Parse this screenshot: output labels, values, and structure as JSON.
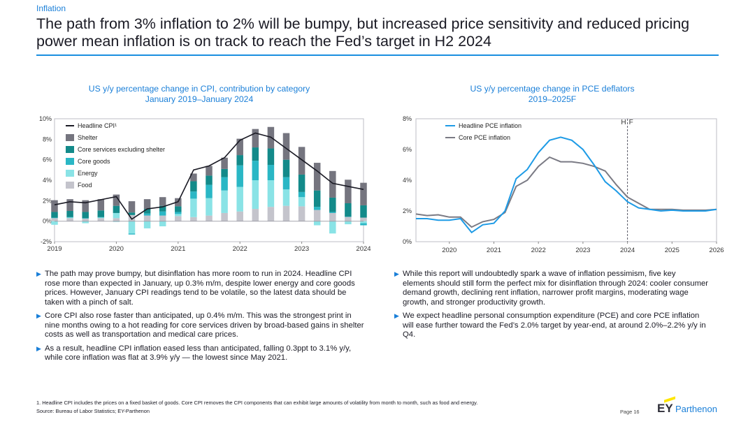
{
  "section_label": "Inflation",
  "headline": "The path from 3% inflation to 2% will be bumpy, but increased price sensitivity and reduced pricing power mean inflation is on track to reach the Fed’s target in H2 2024",
  "left_chart": {
    "title": "US y/y percentage change in CPI, contribution by category",
    "subtitle": "January 2019–January 2024"
  },
  "right_chart": {
    "title": "US y/y percentage change in PCE deflators",
    "subtitle": "2019–2025F"
  },
  "left_bullets": [
    "The path may prove bumpy, but disinflation has more room to run in 2024. Headline CPI rose more than expected in January, up 0.3% m/m, despite lower energy and core goods prices. However, January CPI readings tend to be volatile, so the latest data should be taken with a pinch of salt.",
    "Core CPI also rose faster than anticipated, up 0.4% m/m. This was the strongest print in nine months owing to a hot reading for core services driven by broad-based gains in shelter costs as well as transportation and medical care prices.",
    "As a result, headline CPI inflation eased less than anticipated, falling 0.3ppt to 3.1% y/y, while core inflation was flat at 3.9% y/y — the lowest since May 2021."
  ],
  "right_bullets": [
    "While this report will undoubtedly spark a wave of inflation pessimism, five key elements should still form the perfect mix for disinflation through 2024: cooler consumer demand growth, declining rent inflation, narrower profit margins, moderating wage growth, and stronger productivity growth.",
    "We expect headline personal consumption expenditure (PCE) and core PCE inflation will ease further toward the Fed’s 2.0% target by year-end, at around 2.0%–2.2% y/y in Q4."
  ],
  "footnote": "1.   Headline CPI includes the prices on a fixed basket of goods. Core CPI removes the CPI components that can exhibit large amounts of volatility from month to month, such as food and energy.",
  "source": "Source: Bureau of Labor Statistics; EY-Parthenon",
  "page_number": "Page 16",
  "logo": {
    "ey": "EY",
    "parthenon": "Parthenon"
  },
  "colors": {
    "accent": "#1a7fd8",
    "rule": "#1a8fe0",
    "logo_yellow": "#ffe600"
  },
  "chart_data": [
    {
      "type": "bar",
      "stacked": true,
      "title": "US y/y percentage change in CPI, contribution by category",
      "subtitle": "January 2019–January 2024",
      "xlabel": "",
      "ylabel": "",
      "ylim": [
        -2,
        10
      ],
      "yticks": [
        -2,
        0,
        2,
        4,
        6,
        8,
        10
      ],
      "ytick_labels": [
        "-2%",
        "0%",
        "2%",
        "4%",
        "6%",
        "8%",
        "10%"
      ],
      "xticks": [
        2019,
        2020,
        2021,
        2022,
        2023,
        2024
      ],
      "x": [
        2019.0,
        2019.25,
        2019.5,
        2019.75,
        2020.0,
        2020.25,
        2020.5,
        2020.75,
        2021.0,
        2021.25,
        2021.5,
        2021.75,
        2022.0,
        2022.25,
        2022.5,
        2022.75,
        2023.0,
        2023.25,
        2023.5,
        2023.75,
        2024.0
      ],
      "legend_position": "top-left",
      "series": [
        {
          "name": "Food",
          "color": "#c4c4cc",
          "values": [
            0.3,
            0.3,
            0.25,
            0.3,
            0.3,
            0.6,
            0.55,
            0.55,
            0.5,
            0.4,
            0.55,
            0.8,
            0.95,
            1.2,
            1.4,
            1.5,
            1.45,
            1.1,
            0.8,
            0.45,
            0.35
          ]
        },
        {
          "name": "Energy",
          "color": "#8ae3e6",
          "values": [
            -0.35,
            0.1,
            -0.2,
            0.1,
            0.5,
            -1.2,
            -0.7,
            -0.5,
            0.2,
            1.8,
            1.7,
            2.2,
            2.4,
            2.8,
            2.6,
            1.6,
            0.9,
            -0.4,
            -1.2,
            -0.3,
            -0.2
          ]
        },
        {
          "name": "Core goods",
          "color": "#2ab7c5",
          "values": [
            0.05,
            0.0,
            0.05,
            0.0,
            -0.05,
            -0.1,
            0.2,
            0.4,
            0.2,
            0.7,
            1.3,
            1.3,
            2.1,
            1.9,
            1.5,
            1.2,
            0.5,
            0.3,
            0.1,
            0.0,
            -0.2
          ]
        },
        {
          "name": "Core services excluding shelter",
          "color": "#138a8a",
          "values": [
            0.55,
            0.6,
            0.6,
            0.65,
            0.7,
            0.25,
            0.45,
            0.55,
            0.55,
            1.0,
            0.9,
            0.8,
            1.0,
            1.3,
            1.6,
            1.7,
            1.7,
            1.6,
            1.4,
            1.3,
            1.2
          ]
        },
        {
          "name": "Shelter",
          "color": "#75757f",
          "values": [
            1.15,
            1.15,
            1.15,
            1.1,
            1.1,
            1.1,
            0.95,
            0.85,
            0.8,
            0.75,
            0.95,
            1.1,
            1.6,
            1.8,
            2.1,
            2.6,
            2.7,
            2.7,
            2.6,
            2.3,
            2.2
          ]
        }
      ],
      "headline_cpi": {
        "name": "Headline CPI¹",
        "color": "#1a1a24",
        "values": [
          1.6,
          1.9,
          1.8,
          2.1,
          2.4,
          0.2,
          1.2,
          1.4,
          1.9,
          5.0,
          5.4,
          6.2,
          7.9,
          8.6,
          8.2,
          7.1,
          6.0,
          4.9,
          3.7,
          3.4,
          3.1
        ]
      }
    },
    {
      "type": "line",
      "title": "US y/y percentage change in PCE deflators",
      "subtitle": "2019–2025F",
      "xlabel": "",
      "ylabel": "",
      "ylim": [
        0,
        8
      ],
      "xlim": [
        2019.25,
        2026
      ],
      "yticks": [
        0,
        2,
        4,
        6,
        8
      ],
      "ytick_labels": [
        "0%",
        "2%",
        "4%",
        "6%",
        "8%"
      ],
      "xticks": [
        2020,
        2021,
        2022,
        2023,
        2024,
        2025,
        2026
      ],
      "x": [
        2019.25,
        2019.5,
        2019.75,
        2020.0,
        2020.25,
        2020.5,
        2020.75,
        2021.0,
        2021.25,
        2021.5,
        2021.75,
        2022.0,
        2022.25,
        2022.5,
        2022.75,
        2023.0,
        2023.25,
        2023.5,
        2023.75,
        2024.0,
        2024.25,
        2024.5,
        2024.75,
        2025.0,
        2025.25,
        2025.5,
        2025.75,
        2026.0
      ],
      "series": [
        {
          "name": "Headline PCE inflation",
          "color": "#1e9be6",
          "values": [
            1.5,
            1.5,
            1.4,
            1.4,
            1.5,
            0.6,
            1.1,
            1.2,
            2.0,
            4.1,
            4.7,
            5.8,
            6.6,
            6.8,
            6.6,
            6.0,
            5.0,
            3.9,
            3.3,
            2.6,
            2.2,
            2.1,
            2.0,
            2.05,
            2.0,
            2.0,
            2.0,
            2.1
          ]
        },
        {
          "name": "Core PCE inflation",
          "color": "#7a7a84",
          "values": [
            1.8,
            1.7,
            1.75,
            1.6,
            1.6,
            0.95,
            1.3,
            1.45,
            1.9,
            3.6,
            4.0,
            4.9,
            5.5,
            5.2,
            5.2,
            5.1,
            4.9,
            4.6,
            3.7,
            2.9,
            2.5,
            2.1,
            2.1,
            2.1,
            2.05,
            2.05,
            2.05,
            2.1
          ]
        }
      ],
      "forecast_divider": {
        "x": 2024.0,
        "labels": [
          "H",
          "F"
        ]
      }
    }
  ]
}
